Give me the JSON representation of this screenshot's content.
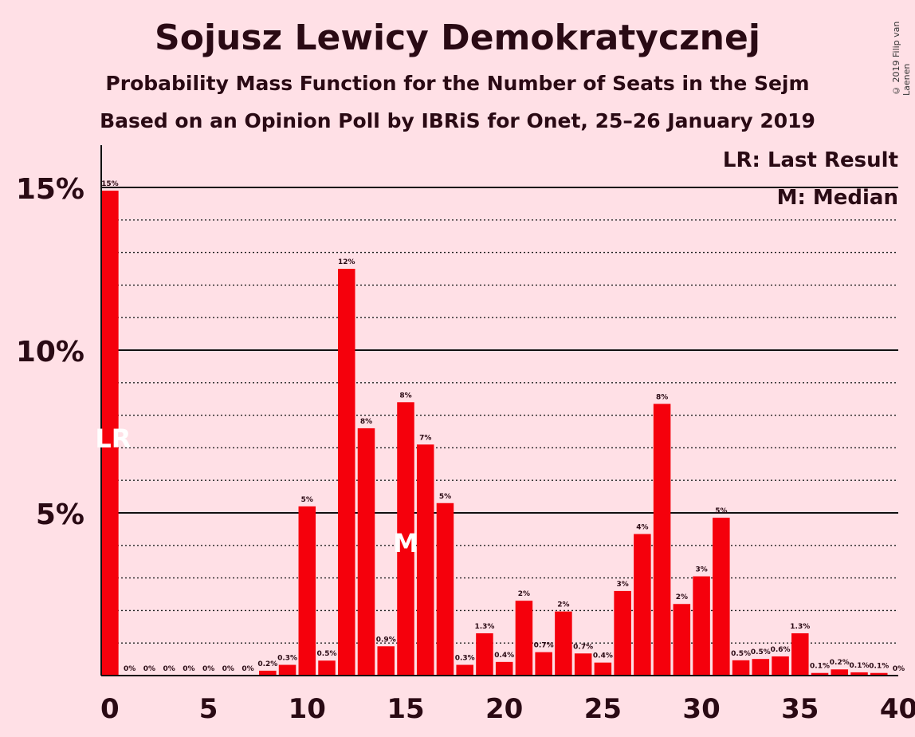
{
  "title": "Sojusz Lewicy Demokratycznej",
  "subtitle1": "Probability Mass Function for the Number of Seats in the Sejm",
  "subtitle2": "Based on an Opinion Poll by IBRiS for Onet, 25–26 January 2019",
  "copyright": "© 2019 Filip van Laenen",
  "colors": {
    "bar": "#F5000C",
    "background": "#FFE0E6",
    "text": "#2a0a14"
  },
  "chart_data": {
    "type": "bar",
    "title": "Sojusz Lewicy Demokratycznej",
    "categories": [
      0,
      1,
      2,
      3,
      4,
      5,
      6,
      7,
      8,
      9,
      10,
      11,
      12,
      13,
      14,
      15,
      16,
      17,
      18,
      19,
      20,
      21,
      22,
      23,
      24,
      25,
      26,
      27,
      28,
      29,
      30,
      31,
      32,
      33,
      34,
      35,
      36,
      37,
      38,
      39,
      40
    ],
    "values": [
      14.9,
      0,
      0,
      0,
      0,
      0,
      0,
      0,
      0.15,
      0.33,
      5.2,
      0.46,
      12.5,
      7.6,
      0.9,
      8.4,
      7.1,
      5.3,
      0.33,
      1.3,
      0.42,
      2.3,
      0.72,
      1.97,
      0.68,
      0.4,
      2.6,
      4.35,
      8.35,
      2.2,
      3.05,
      4.85,
      0.47,
      0.51,
      0.59,
      1.3,
      0.08,
      0.19,
      0.1,
      0.08,
      0
    ],
    "labels": [
      "15%",
      "0%",
      "0%",
      "0%",
      "0%",
      "0%",
      "0%",
      "0%",
      "0.2%",
      "0.3%",
      "5%",
      "0.5%",
      "12%",
      "8%",
      "0.9%",
      "8%",
      "7%",
      "5%",
      "0.3%",
      "1.3%",
      "0.4%",
      "2%",
      "0.7%",
      "2%",
      "0.7%",
      "0.4%",
      "3%",
      "4%",
      "8%",
      "2%",
      "3%",
      "5%",
      "0.5%",
      "0.5%",
      "0.6%",
      "1.3%",
      "0.1%",
      "0.2%",
      "0.1%",
      "0.1%",
      "0%"
    ],
    "ylim": [
      0,
      16
    ],
    "yticks": [
      {
        "value": 5,
        "label": "5%"
      },
      {
        "value": 10,
        "label": "10%"
      },
      {
        "value": 15,
        "label": "15%"
      }
    ],
    "xticks": [
      0,
      5,
      10,
      15,
      20,
      25,
      30,
      35,
      40
    ],
    "last_result": {
      "seat": 0,
      "marker": "LR"
    },
    "median": {
      "seat": 15,
      "marker": "M"
    },
    "legend": [
      "LR: Last Result",
      "M: Median"
    ],
    "legend_position": "top-right"
  }
}
